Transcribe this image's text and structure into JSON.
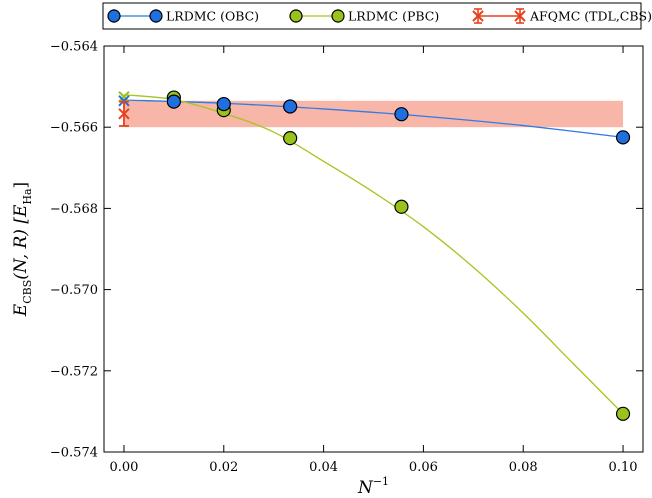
{
  "chart_data": {
    "type": "line",
    "xlabel": "N",
    "xlabel_sup": "−1",
    "ylabel": "E",
    "ylabel_sub": "CBS",
    "ylabel_mid": "(N, R) [E",
    "ylabel_sub2": "Ha",
    "ylabel_end": "]",
    "xlim": [
      -0.004,
      0.104
    ],
    "ylim": [
      -0.574,
      -0.564
    ],
    "xticks": [
      0.0,
      0.02,
      0.04,
      0.06,
      0.08,
      0.1
    ],
    "xtick_labels": [
      "0.00",
      "0.02",
      "0.04",
      "0.06",
      "0.08",
      "0.10"
    ],
    "yticks": [
      -0.574,
      -0.572,
      -0.57,
      -0.568,
      -0.566,
      -0.564
    ],
    "ytick_labels": [
      "−0.574",
      "−0.572",
      "−0.570",
      "−0.568",
      "−0.566",
      "−0.564"
    ],
    "legend_position": "top",
    "series": [
      {
        "name": "LRDMC (OBC)",
        "color": "#1f6fe0",
        "line_color": "#2f7be8",
        "marker": "circle",
        "x": [
          0.0,
          0.01,
          0.02,
          0.0333,
          0.0556,
          0.1
        ],
        "y": [
          -0.56535,
          -0.56537,
          -0.56543,
          -0.56549,
          -0.56568,
          -0.56625
        ],
        "fit_x": [
          0.0,
          0.02,
          0.04,
          0.06,
          0.08,
          0.1
        ],
        "fit_y": [
          -0.56533,
          -0.56541,
          -0.56555,
          -0.56573,
          -0.56596,
          -0.56625
        ]
      },
      {
        "name": "LRDMC (PBC)",
        "color": "#9ac21c",
        "line_color": "#a3c61e",
        "marker": "circle",
        "x": [
          0.0,
          0.01,
          0.02,
          0.0333,
          0.0556,
          0.1
        ],
        "y": [
          -0.56525,
          -0.56527,
          -0.56558,
          -0.56627,
          -0.56796,
          -0.57306
        ],
        "fit_x": [
          0.0,
          0.01,
          0.02,
          0.03,
          0.04,
          0.05,
          0.06,
          0.07,
          0.08,
          0.09,
          0.1
        ],
        "fit_y": [
          -0.5652,
          -0.56532,
          -0.56566,
          -0.56612,
          -0.56684,
          -0.5676,
          -0.56845,
          -0.56945,
          -0.57058,
          -0.57182,
          -0.57306
        ]
      },
      {
        "name": "AFQMC (TDL,CBS)",
        "color": "#e8401c",
        "marker": "x-errorbar",
        "x": [
          0.0
        ],
        "y": [
          -0.56567
        ],
        "yerr": [
          0.0003
        ],
        "band": {
          "y_low": -0.566,
          "y_high": -0.56535,
          "x_from": 0.0,
          "x_to": 0.1,
          "color": "#f7b6a8"
        }
      }
    ]
  }
}
